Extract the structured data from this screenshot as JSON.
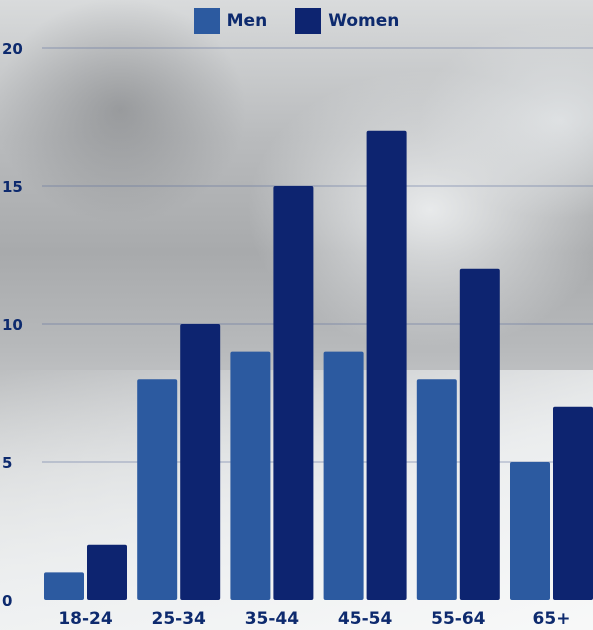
{
  "chart_data": {
    "type": "bar",
    "categories": [
      "18-24",
      "25-34",
      "35-44",
      "45-54",
      "55-64",
      "65+"
    ],
    "series": [
      {
        "name": "Men",
        "values": [
          1,
          8,
          9,
          9,
          8,
          5
        ],
        "color": "#2c5aa0"
      },
      {
        "name": "Women",
        "values": [
          2,
          10,
          15,
          17,
          12,
          7
        ],
        "color": "#0d2470"
      }
    ],
    "y_ticks": [
      "0",
      "5",
      "10",
      "15",
      "20"
    ],
    "ylim": [
      0,
      20
    ],
    "grid": true,
    "legend": "top-center"
  },
  "colors": {
    "axis_text": "#0d2a6e",
    "grid": "#5a6b9a"
  }
}
